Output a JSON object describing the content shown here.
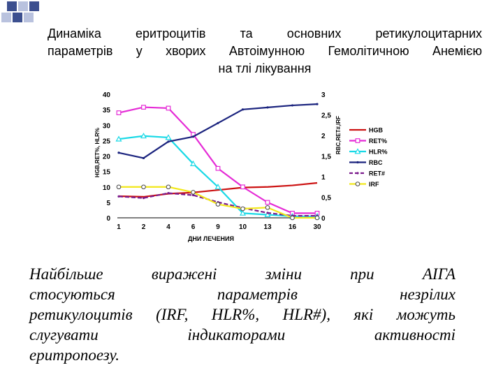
{
  "title": {
    "line1": "Динаміка еритроцитів та основних ретикулоцитарних",
    "line2": "параметрів у хворих Автоімунною Гемолітичною Анемією",
    "line3": "на тлі лікування"
  },
  "body_text": {
    "line1": "Найбільше виражені зміни при АІГА",
    "line2": "стосуються параметрів незрілих",
    "line3": "ретикулоцитів (IRF, HLR%, HLR#), які можуть",
    "line4": "слугувати індикаторами активності",
    "line5": "еритропоезу."
  },
  "colors": {
    "deco_square": "#3c4f8f",
    "deco_square_light": "#b9c2de"
  },
  "chart_data": {
    "type": "line",
    "categories": [
      "1",
      "2",
      "4",
      "6",
      "9",
      "10",
      "13",
      "16",
      "30"
    ],
    "xlabel": "ДНИ ЛЕЧЕНИЯ",
    "ylabel_left": "HGB,RET%, HLR%",
    "ylabel_right": "RBC,RET#,IRF",
    "ylim_left": [
      0,
      40
    ],
    "yticks_left": [
      "0",
      "5",
      "10",
      "15",
      "20",
      "25",
      "30",
      "35",
      "40"
    ],
    "ylim_right": [
      0,
      3
    ],
    "yticks_right": [
      "0",
      "0,5",
      "1",
      "1,5",
      "2",
      "2,5",
      "3"
    ],
    "legend_position": "right",
    "grid": false,
    "series": [
      {
        "name": "HGB",
        "axis": "left",
        "color": "#cc1111",
        "marker": "none",
        "dash": "solid",
        "values": [
          7.0,
          6.8,
          7.8,
          8.2,
          9.0,
          9.8,
          10.0,
          10.5,
          11.3
        ]
      },
      {
        "name": "RET%",
        "axis": "left",
        "color": "#e52bd6",
        "marker": "square",
        "dash": "solid",
        "values": [
          34.0,
          35.8,
          35.5,
          27.0,
          16.0,
          10.0,
          5.0,
          1.5,
          1.5
        ]
      },
      {
        "name": "HLR%",
        "axis": "left",
        "color": "#19d9e6",
        "marker": "triangle",
        "dash": "solid",
        "values": [
          25.5,
          26.5,
          26.0,
          17.5,
          10.0,
          1.5,
          1.0,
          0.5,
          0.5
        ]
      },
      {
        "name": "RBC",
        "axis": "right",
        "color": "#1a237e",
        "marker": "dot",
        "dash": "solid",
        "values": [
          1.58,
          1.45,
          1.85,
          1.97,
          2.3,
          2.63,
          2.68,
          2.73,
          2.76
        ]
      },
      {
        "name": "RET#",
        "axis": "right",
        "color": "#7a1a8c",
        "marker": "dot",
        "dash": "dash",
        "values": [
          0.52,
          0.48,
          0.6,
          0.55,
          0.38,
          0.24,
          0.12,
          0.05,
          0.05
        ]
      },
      {
        "name": "IRF",
        "axis": "right",
        "color": "#f2e81a",
        "marker": "circle",
        "dash": "solid",
        "values": [
          0.75,
          0.75,
          0.75,
          0.62,
          0.33,
          0.22,
          0.25,
          0.0,
          0.0
        ]
      }
    ]
  }
}
